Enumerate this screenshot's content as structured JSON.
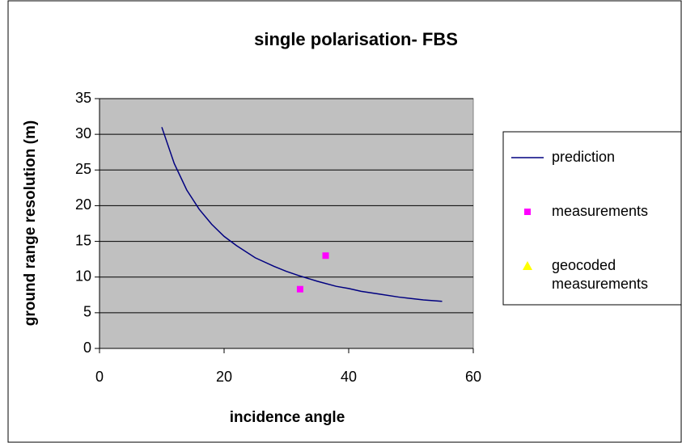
{
  "chart_data": {
    "type": "scatter",
    "title": "single polarisation- FBS",
    "x_label": "incidence angle",
    "y_label": "ground range resolution (m)",
    "xlim": [
      0,
      60
    ],
    "xticks": [
      0,
      20,
      40,
      60
    ],
    "ylim": [
      0,
      35
    ],
    "yticks": [
      0,
      5,
      10,
      15,
      20,
      25,
      30,
      35
    ],
    "grid": true,
    "legend": "right",
    "series": [
      {
        "name": "prediction",
        "color": "#000080",
        "mode": "line",
        "x": [
          10,
          12,
          14,
          16,
          18,
          20,
          22,
          25,
          28,
          30,
          32,
          35,
          38,
          40,
          42,
          45,
          48,
          50,
          52,
          55
        ],
        "values": [
          31.0,
          25.9,
          22.2,
          19.5,
          17.4,
          15.7,
          14.4,
          12.7,
          11.5,
          10.8,
          10.2,
          9.4,
          8.7,
          8.4,
          8.0,
          7.6,
          7.2,
          7.0,
          6.8,
          6.6
        ]
      },
      {
        "name": "measurements",
        "color": "#ff00ff",
        "mode": "square",
        "x": [
          32.2,
          36.3
        ],
        "values": [
          8.3,
          13
        ]
      },
      {
        "name": "geocoded measurements",
        "color": "#ffff00",
        "mode": "triangle",
        "x": [],
        "values": []
      }
    ]
  }
}
